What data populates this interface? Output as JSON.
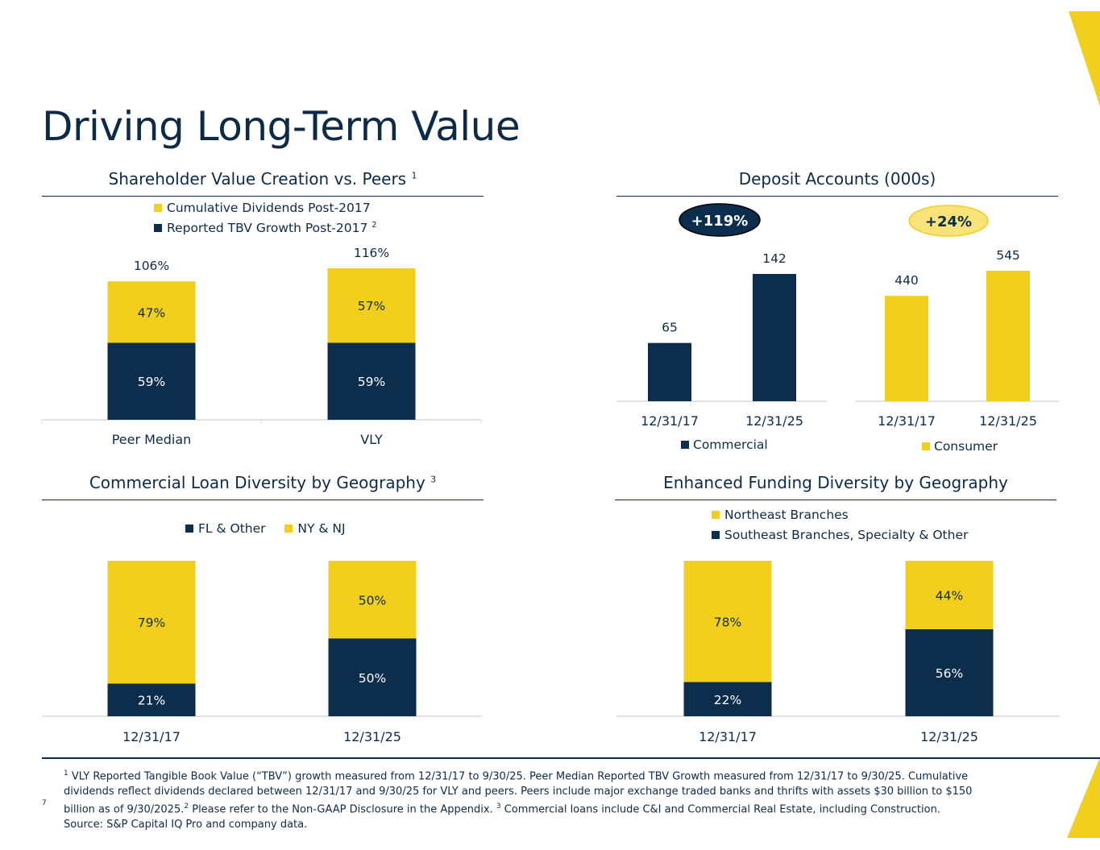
{
  "page": {
    "title": "Driving Long-Term Value",
    "page_number": "7",
    "colors": {
      "navy": "#0c2d4c",
      "yellow": "#f2cf1d",
      "badge_yellow": "#f8e27a",
      "axis": "#d9d9d9",
      "text": "#0d2b47"
    }
  },
  "sections": {
    "shareholder": {
      "title": "Shareholder Value Creation vs. Peers",
      "sup": "1"
    },
    "deposits": {
      "title": "Deposit Accounts (000s)"
    },
    "commercial_loans": {
      "title": "Commercial Loan Diversity by Geography",
      "sup": "3"
    },
    "funding": {
      "title": "Enhanced Funding Diversity by Geography"
    }
  },
  "legends": {
    "shareholder": [
      {
        "label": "Cumulative Dividends Post-2017",
        "sup": "",
        "color": "#f2cf1d"
      },
      {
        "label": "Reported TBV Growth Post-2017",
        "sup": "2",
        "color": "#0c2d4c"
      }
    ],
    "commercial": {
      "label": "Commercial",
      "color": "#0c2d4c"
    },
    "consumer": {
      "label": "Consumer",
      "color": "#f2cf1d"
    },
    "loans": [
      {
        "label": "FL & Other",
        "color": "#0c2d4c"
      },
      {
        "label": "NY & NJ",
        "color": "#f2cf1d"
      }
    ],
    "funding": [
      {
        "label": "Northeast Branches",
        "color": "#f2cf1d"
      },
      {
        "label": "Southeast Branches, Specialty & Other",
        "color": "#0c2d4c"
      }
    ]
  },
  "badges": {
    "commercial_growth": "+119%",
    "consumer_growth": "+24%"
  },
  "chart_data": [
    {
      "id": "shareholder",
      "type": "bar",
      "stacked": true,
      "title": "Shareholder Value Creation vs. Peers",
      "categories": [
        "Peer Median",
        "VLY"
      ],
      "series": [
        {
          "name": "Reported TBV Growth Post-2017",
          "values": [
            59,
            59
          ],
          "labels": [
            "59%",
            "59%"
          ],
          "color": "#0c2d4c"
        },
        {
          "name": "Cumulative Dividends Post-2017",
          "values": [
            47,
            57
          ],
          "labels": [
            "47%",
            "57%"
          ],
          "color": "#f2cf1d"
        }
      ],
      "totals": [
        "106%",
        "116%"
      ],
      "ylim": [
        0,
        116
      ]
    },
    {
      "id": "deposits_commercial",
      "type": "bar",
      "title": "Deposit Accounts (000s)",
      "categories": [
        "12/31/17",
        "12/31/25"
      ],
      "series": [
        {
          "name": "Commercial",
          "values": [
            65,
            142
          ],
          "color": "#0c2d4c"
        }
      ],
      "ylim": [
        0,
        142
      ]
    },
    {
      "id": "deposits_consumer",
      "type": "bar",
      "title": "Deposit Accounts (000s)",
      "categories": [
        "12/31/17",
        "12/31/25"
      ],
      "series": [
        {
          "name": "Consumer",
          "values": [
            440,
            545
          ],
          "color": "#f2cf1d"
        }
      ],
      "ylim": [
        0,
        545
      ]
    },
    {
      "id": "loans",
      "type": "bar",
      "stacked": true,
      "title": "Commercial Loan Diversity by Geography",
      "categories": [
        "12/31/17",
        "12/31/25"
      ],
      "series": [
        {
          "name": "FL & Other",
          "values": [
            21,
            50
          ],
          "labels": [
            "21%",
            "50%"
          ],
          "color": "#0c2d4c"
        },
        {
          "name": "NY & NJ",
          "values": [
            79,
            50
          ],
          "labels": [
            "79%",
            "50%"
          ],
          "color": "#f2cf1d"
        }
      ],
      "ylim": [
        0,
        100
      ]
    },
    {
      "id": "funding",
      "type": "bar",
      "stacked": true,
      "title": "Enhanced Funding Diversity by Geography",
      "categories": [
        "12/31/17",
        "12/31/25"
      ],
      "series": [
        {
          "name": "Southeast Branches, Specialty & Other",
          "values": [
            22,
            56
          ],
          "labels": [
            "22%",
            "56%"
          ],
          "color": "#0c2d4c"
        },
        {
          "name": "Northeast Branches",
          "values": [
            78,
            44
          ],
          "labels": [
            "78%",
            "44%"
          ],
          "color": "#f2cf1d"
        }
      ],
      "ylim": [
        0,
        100
      ]
    }
  ],
  "footnote": {
    "lines": [
      {
        "sup": "1",
        "text": " VLY Reported Tangible Book Value (“TBV”) growth measured from 12/31/17 to 9/30/25.  Peer Median Reported TBV Growth measured from 12/31/17 to 9/30/25.  Cumulative"
      },
      {
        "sup": "",
        "text": "dividends reflect dividends declared between 12/31/17 and 9/30/25 for VLY and peers.  Peers include major exchange traded banks and thrifts with assets $30 billion to $150"
      },
      {
        "sup": "",
        "text": "billion as of 9/30/2025."
      },
      {
        "sup": "",
        "text": "Source: S&P Capital IQ Pro and company data."
      }
    ],
    "line3_part2_sup": "2",
    "line3_part2": " Please refer to the Non-GAAP Disclosure in the Appendix.  ",
    "line3_part3_sup": "3",
    "line3_part3": " Commercial loans include C&I and Commercial Real Estate, including Construction."
  }
}
